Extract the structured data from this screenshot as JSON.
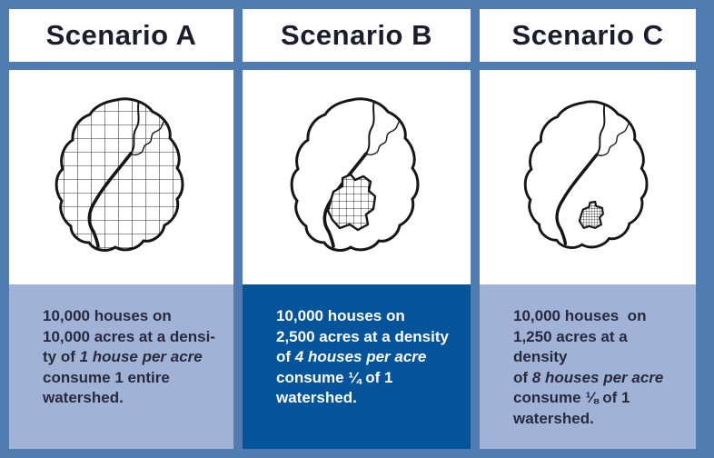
{
  "page": {
    "background": "#507cb2",
    "header_bg": "#ffffff",
    "panel_bg": "#ffffff",
    "title_color": "#1c1c2e"
  },
  "panels": [
    {
      "title": "Scenario A",
      "drawing": "watershed-fully-gridded",
      "description": {
        "bg": "#a0b3d6",
        "fg": "#29293d",
        "lines": [
          [
            {
              "t": "10,000 houses on"
            }
          ],
          [
            {
              "t": "10,000 acres at a densi-"
            }
          ],
          [
            {
              "t": "ty of "
            },
            {
              "t": "1 house per acre",
              "i": true
            }
          ],
          [
            {
              "t": "consume 1 entire"
            }
          ],
          [
            {
              "t": "watershed."
            }
          ]
        ]
      }
    },
    {
      "title": "Scenario B",
      "drawing": "watershed-quarter-gridded",
      "description": {
        "bg": "#03549a",
        "fg": "#ffffff",
        "lines": [
          [
            {
              "t": "10,000 houses on"
            }
          ],
          [
            {
              "t": "2,500 acres at a density"
            }
          ],
          [
            {
              "t": "of "
            },
            {
              "t": "4 houses per acre",
              "i": true
            }
          ],
          [
            {
              "t": "consume ¼ of 1"
            }
          ],
          [
            {
              "t": "watershed."
            }
          ]
        ]
      }
    },
    {
      "title": "Scenario C",
      "drawing": "watershed-eighth-gridded",
      "description": {
        "bg": "#a0b3d6",
        "fg": "#29293d",
        "lines": [
          [
            {
              "t": "10,000 houses  on"
            }
          ],
          [
            {
              "t": "1,250 acres at a density"
            }
          ],
          [
            {
              "t": "of "
            },
            {
              "t": "8 houses per acre",
              "i": true
            }
          ],
          [
            {
              "t": "consume ⅛ of 1"
            }
          ],
          [
            {
              "t": "watershed."
            }
          ]
        ]
      }
    }
  ]
}
